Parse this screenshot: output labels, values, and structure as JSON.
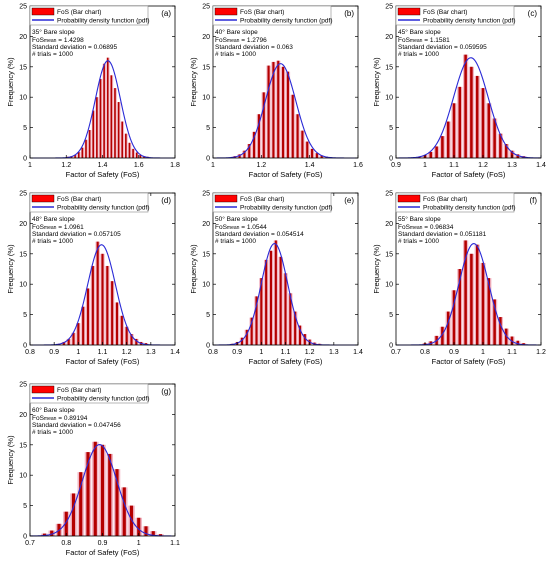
{
  "legend": {
    "bar_label": "FoS (Bar chart)",
    "line_label": "Probability density function (pdf)"
  },
  "colors": {
    "bar": "#b40000",
    "bar_pink": "#f2b8c6",
    "pdf_line": "#2a2ad6",
    "legend_fill": "#ff0000"
  },
  "chart_data": [
    {
      "type": "bar",
      "panel_label": "(a)",
      "slope_text": "35° Bare slope",
      "mean_label": "FoS",
      "mean_sub": "mean",
      "mean_value": " = 1.4298",
      "std_text": "Standard deviation = 0.06895",
      "trials_text": "# trials = 1000",
      "mean": 1.4298,
      "std": 0.06895,
      "xlim": [
        1.0,
        1.8
      ],
      "ylim": [
        0,
        25
      ],
      "xticks": [
        "1",
        "1.2",
        "1.4",
        "1.6",
        "1.8"
      ],
      "yticks": [
        "0",
        "5",
        "10",
        "15",
        "20",
        "25"
      ],
      "xlabel": "Factor of Safety (FoS)",
      "ylabel": "Frequency (%)",
      "x": [
        1.21,
        1.23,
        1.25,
        1.27,
        1.29,
        1.31,
        1.33,
        1.35,
        1.37,
        1.39,
        1.41,
        1.43,
        1.45,
        1.47,
        1.49,
        1.51,
        1.53,
        1.55,
        1.57,
        1.59,
        1.61,
        1.63,
        1.65
      ],
      "values": [
        0.2,
        0.3,
        0.5,
        1.0,
        1.7,
        3.0,
        4.6,
        7.8,
        10.0,
        13.0,
        15.5,
        16.5,
        13.6,
        11.5,
        9.2,
        6.0,
        4.0,
        2.5,
        1.5,
        0.9,
        0.5,
        0.3,
        0.2
      ]
    },
    {
      "type": "bar",
      "panel_label": "(b)",
      "slope_text": "40° Bare slope",
      "mean_label": "FoS",
      "mean_sub": "mean",
      "mean_value": " = 1.2796",
      "std_text": "Standard deviation = 0.063",
      "trials_text": "# trials = 1000",
      "mean": 1.2796,
      "std": 0.063,
      "xlim": [
        1.0,
        1.6
      ],
      "ylim": [
        0,
        25
      ],
      "xticks": [
        "1",
        "1.2",
        "1.4",
        "1.6"
      ],
      "yticks": [
        "0",
        "5",
        "10",
        "15",
        "20",
        "25"
      ],
      "xlabel": "Factor of Safety (FoS)",
      "ylabel": "Frequency (%)",
      "x": [
        1.09,
        1.11,
        1.13,
        1.15,
        1.17,
        1.19,
        1.21,
        1.23,
        1.25,
        1.27,
        1.29,
        1.31,
        1.33,
        1.35,
        1.37,
        1.39,
        1.41,
        1.43,
        1.45,
        1.47
      ],
      "values": [
        0.3,
        0.6,
        1.2,
        2.3,
        4.3,
        7.2,
        10.8,
        15.2,
        15.8,
        16.0,
        15.0,
        14.2,
        10.4,
        7.2,
        4.5,
        2.7,
        1.5,
        0.8,
        0.4,
        0.2
      ]
    },
    {
      "type": "bar",
      "panel_label": "(c)",
      "slope_text": "45° Bare slope",
      "mean_label": "FoS",
      "mean_sub": "mean",
      "mean_value": " = 1.1581",
      "std_text": "Standard deviation = 0.059595",
      "trials_text": "# trials = 1000",
      "mean": 1.1581,
      "std": 0.059595,
      "xlim": [
        0.9,
        1.4
      ],
      "ylim": [
        0,
        25
      ],
      "xticks": [
        "0.9",
        "1",
        "1.1",
        "1.2",
        "1.3",
        "1.4"
      ],
      "yticks": [
        "0",
        "5",
        "10",
        "15",
        "20",
        "25"
      ],
      "xlabel": "Factor of Safety (FoS)",
      "ylabel": "Frequency (%)",
      "x": [
        0.98,
        1.0,
        1.02,
        1.04,
        1.06,
        1.08,
        1.1,
        1.12,
        1.14,
        1.16,
        1.18,
        1.2,
        1.22,
        1.24,
        1.26,
        1.28,
        1.3,
        1.32,
        1.34
      ],
      "values": [
        0.2,
        0.5,
        1.0,
        1.9,
        3.6,
        6.0,
        9.0,
        11.7,
        17.0,
        15.0,
        13.5,
        11.5,
        9.0,
        6.5,
        4.0,
        2.3,
        1.2,
        0.6,
        0.3
      ]
    },
    {
      "type": "bar",
      "panel_label": "(d)",
      "slope_text": "48° Bare slope",
      "mean_label": "FoS",
      "mean_sub": "mean",
      "mean_value": " = 1.0961",
      "std_text": "Standard deviation = 0.057105",
      "trials_text": "# trials = 1000",
      "mean": 1.0961,
      "std": 0.057105,
      "xlim": [
        0.8,
        1.4
      ],
      "ylim": [
        0,
        25
      ],
      "xticks": [
        "0.8",
        "0.9",
        "1",
        "1.1",
        "1.2",
        "1.3",
        "1.4"
      ],
      "yticks": [
        "0",
        "5",
        "10",
        "15",
        "20",
        "25"
      ],
      "xlabel": "Factor of Safety (FoS)",
      "ylabel": "Frequency (%)",
      "x": [
        0.92,
        0.94,
        0.96,
        0.98,
        1.0,
        1.02,
        1.04,
        1.06,
        1.08,
        1.1,
        1.12,
        1.14,
        1.16,
        1.18,
        1.2,
        1.22,
        1.24,
        1.26,
        1.28
      ],
      "values": [
        0.2,
        0.5,
        1.0,
        2.0,
        3.6,
        6.3,
        9.3,
        13.0,
        17.0,
        15.0,
        13.0,
        10.5,
        7.0,
        4.8,
        3.0,
        1.8,
        1.0,
        0.5,
        0.3
      ]
    },
    {
      "type": "bar",
      "panel_label": "(e)",
      "slope_text": "50° Bare slope",
      "mean_label": "FoS",
      "mean_sub": "mean",
      "mean_value": " = 1.0544",
      "std_text": "Standard deviation = 0.054514",
      "trials_text": "# trials = 1000",
      "mean": 1.0544,
      "std": 0.054514,
      "xlim": [
        0.8,
        1.4
      ],
      "ylim": [
        0,
        25
      ],
      "xticks": [
        "0.8",
        "0.9",
        "1",
        "1.1",
        "1.2",
        "1.3",
        "1.4"
      ],
      "yticks": [
        "0",
        "5",
        "10",
        "15",
        "20",
        "25"
      ],
      "xlabel": "Factor of Safety (FoS)",
      "ylabel": "Frequency (%)",
      "x": [
        0.88,
        0.9,
        0.92,
        0.94,
        0.96,
        0.98,
        1.0,
        1.02,
        1.04,
        1.06,
        1.08,
        1.1,
        1.12,
        1.14,
        1.16,
        1.18,
        1.2,
        1.22,
        1.24
      ],
      "values": [
        0.2,
        0.5,
        1.2,
        2.5,
        4.5,
        8.0,
        11.0,
        14.0,
        15.5,
        17.2,
        14.5,
        11.8,
        8.5,
        5.5,
        3.2,
        1.8,
        0.9,
        0.4,
        0.2
      ]
    },
    {
      "type": "bar",
      "panel_label": "(f)",
      "slope_text": "55° Bare slope",
      "mean_label": "FoS",
      "mean_sub": "mean",
      "mean_value": " = 0.96834",
      "std_text": "Standard deviation = 0.051181",
      "trials_text": "# trials = 1000",
      "mean": 0.96834,
      "std": 0.051181,
      "xlim": [
        0.7,
        1.2
      ],
      "ylim": [
        0,
        25
      ],
      "xticks": [
        "0.7",
        "0.8",
        "0.9",
        "1",
        "1.1",
        "1.2"
      ],
      "yticks": [
        "0",
        "5",
        "10",
        "15",
        "20",
        "25"
      ],
      "xlabel": "Factor of Safety (FoS)",
      "ylabel": "Frequency (%)",
      "x": [
        0.8,
        0.82,
        0.84,
        0.86,
        0.88,
        0.9,
        0.92,
        0.94,
        0.96,
        0.98,
        1.0,
        1.02,
        1.04,
        1.06,
        1.08,
        1.1,
        1.12,
        1.14
      ],
      "values": [
        0.3,
        0.6,
        1.5,
        3.0,
        5.5,
        9.0,
        12.5,
        17.2,
        15.0,
        16.5,
        13.5,
        11.0,
        7.5,
        4.6,
        2.7,
        1.4,
        0.7,
        0.3
      ]
    },
    {
      "type": "bar",
      "panel_label": "(g)",
      "slope_text": "60° Bare slope",
      "mean_label": "FoS",
      "mean_sub": "mean",
      "mean_value": " = 0.89194",
      "std_text": "Standard deviation = 0.047456",
      "trials_text": "# trials = 1000",
      "mean": 0.89194,
      "std": 0.047456,
      "xlim": [
        0.7,
        1.1
      ],
      "ylim": [
        0,
        25
      ],
      "xticks": [
        "0.7",
        "0.8",
        "0.9",
        "1",
        "1.1"
      ],
      "yticks": [
        "0",
        "5",
        "10",
        "15",
        "20",
        "25"
      ],
      "xlabel": "Factor of Safety (FoS)",
      "ylabel": "Frequency (%)",
      "x": [
        0.74,
        0.76,
        0.78,
        0.8,
        0.82,
        0.84,
        0.86,
        0.88,
        0.9,
        0.92,
        0.94,
        0.96,
        0.98,
        1.0,
        1.02,
        1.04,
        1.06
      ],
      "values": [
        0.4,
        0.9,
        2.0,
        4.0,
        7.0,
        10.5,
        13.8,
        15.5,
        15.0,
        13.5,
        11.0,
        8.0,
        5.0,
        3.0,
        1.6,
        0.8,
        0.3
      ]
    }
  ]
}
